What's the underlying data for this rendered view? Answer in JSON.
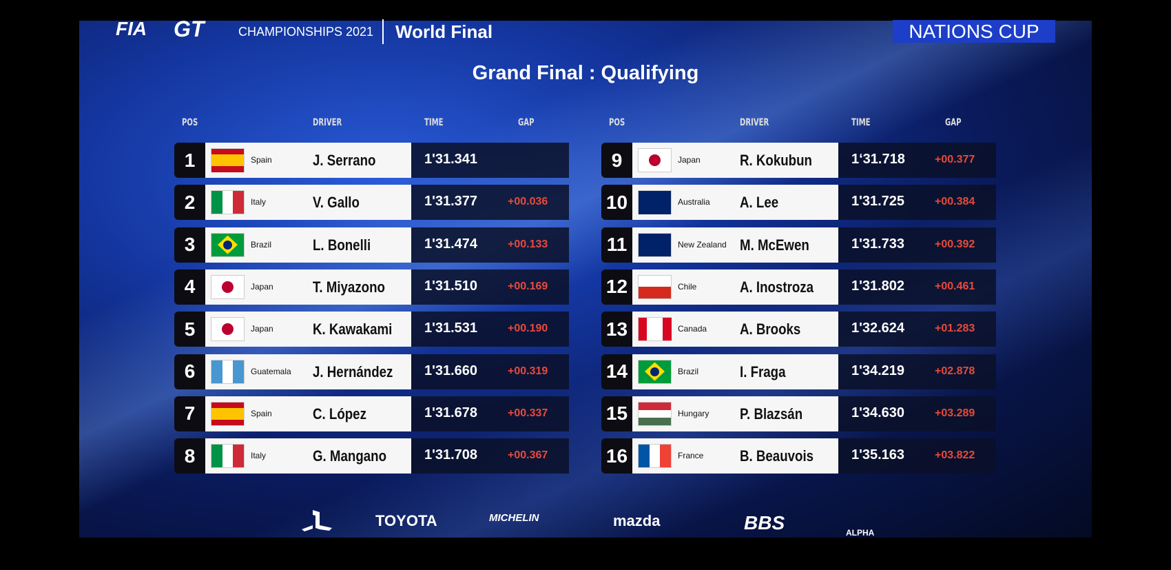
{
  "header": {
    "logos": [
      "FIA",
      "GT"
    ],
    "event": "CHAMPIONSHIPS 2021",
    "stage": "World Final",
    "badge": "NATIONS CUP"
  },
  "title": "Grand Final : Qualifying",
  "columns": [
    "POS",
    "DRIVER",
    "TIME",
    "GAP"
  ],
  "rows": [
    {
      "pos": 1,
      "country": "Spain",
      "driver": "J. Serrano",
      "time": "1'31.341",
      "gap": null,
      "flag": {
        "dir": "h",
        "stripes": [
          "#c60b1e",
          "#ffc400",
          "#ffc400",
          "#c60b1e"
        ]
      }
    },
    {
      "pos": 2,
      "country": "Italy",
      "driver": "V. Gallo",
      "time": "1'31.377",
      "gap": "+00.036",
      "flag": {
        "dir": "v",
        "stripes": [
          "#009246",
          "#ffffff",
          "#ce2b37"
        ]
      }
    },
    {
      "pos": 3,
      "country": "Brazil",
      "driver": "L. Bonelli",
      "time": "1'31.474",
      "gap": "+00.133",
      "flag": {
        "dir": "diamond",
        "stripes": [
          "#009c3b",
          "#ffdf00",
          "#002776"
        ]
      }
    },
    {
      "pos": 4,
      "country": "Japan",
      "driver": "T. Miyazono",
      "time": "1'31.510",
      "gap": "+00.169",
      "flag": {
        "dir": "circle",
        "stripes": [
          "#ffffff",
          "#bc002d"
        ]
      }
    },
    {
      "pos": 5,
      "country": "Japan",
      "driver": "K. Kawakami",
      "time": "1'31.531",
      "gap": "+00.190",
      "flag": {
        "dir": "circle",
        "stripes": [
          "#ffffff",
          "#bc002d"
        ]
      }
    },
    {
      "pos": 6,
      "country": "Guatemala",
      "driver": "J. Hernández",
      "time": "1'31.660",
      "gap": "+00.319",
      "flag": {
        "dir": "v",
        "stripes": [
          "#4997d0",
          "#ffffff",
          "#4997d0"
        ]
      }
    },
    {
      "pos": 7,
      "country": "Spain",
      "driver": "C. López",
      "time": "1'31.678",
      "gap": "+00.337",
      "flag": {
        "dir": "h",
        "stripes": [
          "#c60b1e",
          "#ffc400",
          "#ffc400",
          "#c60b1e"
        ]
      }
    },
    {
      "pos": 8,
      "country": "Italy",
      "driver": "G. Mangano",
      "time": "1'31.708",
      "gap": "+00.367",
      "flag": {
        "dir": "v",
        "stripes": [
          "#009246",
          "#ffffff",
          "#ce2b37"
        ]
      }
    },
    {
      "pos": 9,
      "country": "Japan",
      "driver": "R. Kokubun",
      "time": "1‘31.718",
      "gap": "+00.377",
      "flag": {
        "dir": "circle",
        "stripes": [
          "#ffffff",
          "#bc002d"
        ]
      }
    },
    {
      "pos": 10,
      "country": "Australia",
      "driver": "A. Lee",
      "time": "1'31.725",
      "gap": "+00.384",
      "flag": {
        "dir": "h",
        "stripes": [
          "#012169"
        ]
      }
    },
    {
      "pos": 11,
      "country": "New Zealand",
      "driver": "M. McEwen",
      "time": "1'31.733",
      "gap": "+00.392",
      "flag": {
        "dir": "h",
        "stripes": [
          "#012169"
        ]
      }
    },
    {
      "pos": 12,
      "country": "Chile",
      "driver": "A. Inostroza",
      "time": "1'31.802",
      "gap": "+00.461",
      "flag": {
        "dir": "h",
        "stripes": [
          "#ffffff",
          "#d52b1e"
        ]
      }
    },
    {
      "pos": 13,
      "country": "Canada",
      "driver": "A. Brooks",
      "time": "1'32.624",
      "gap": "+01.283",
      "flag": {
        "dir": "v",
        "stripes": [
          "#d80621",
          "#ffffff",
          "#ffffff",
          "#d80621"
        ]
      }
    },
    {
      "pos": 14,
      "country": "Brazil",
      "driver": "I. Fraga",
      "time": "1'34.219",
      "gap": "+02.878",
      "flag": {
        "dir": "diamond",
        "stripes": [
          "#009c3b",
          "#ffdf00",
          "#002776"
        ]
      }
    },
    {
      "pos": 15,
      "country": "Hungary",
      "driver": "P. Blazsán",
      "time": "1'34.630",
      "gap": "+03.289",
      "flag": {
        "dir": "h",
        "stripes": [
          "#ce2939",
          "#ffffff",
          "#477050"
        ]
      }
    },
    {
      "pos": 16,
      "country": "France",
      "driver": "B. Beauvois",
      "time": "1'35.163",
      "gap": "+03.822",
      "flag": {
        "dir": "v",
        "stripes": [
          "#0055a4",
          "#ffffff",
          "#ef4135"
        ]
      }
    }
  ],
  "sponsors": [
    "TOYOTA",
    "MICHELIN",
    "mazda",
    "BBS",
    "ALPHA"
  ]
}
